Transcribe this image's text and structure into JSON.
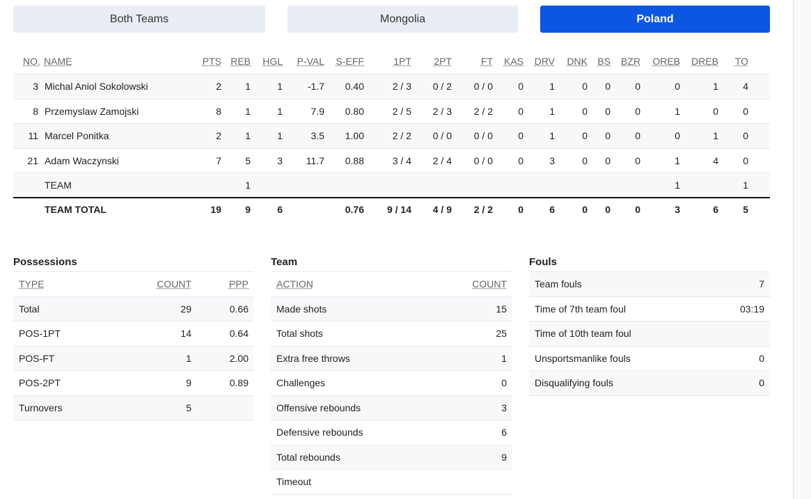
{
  "tabs": [
    "Both Teams",
    "Mongolia",
    "Poland"
  ],
  "box_score": {
    "headers": [
      "NO.",
      "NAME",
      "PTS",
      "REB",
      "HGL",
      "P-VAL",
      "S-EFF",
      "1PT",
      "2PT",
      "FT",
      "KAS",
      "DRV",
      "DNK",
      "BS",
      "BZR",
      "OREB",
      "DREB",
      "TO"
    ],
    "rows": [
      [
        "3",
        "Michal Aniol Sokolowski",
        "2",
        "1",
        "1",
        "-1.7",
        "0.40",
        "2 / 3",
        "0 / 2",
        "0 / 0",
        "0",
        "1",
        "0",
        "0",
        "0",
        "0",
        "1",
        "4"
      ],
      [
        "8",
        "Przemyslaw Zamojski",
        "8",
        "1",
        "1",
        "7.9",
        "0.80",
        "2 / 5",
        "2 / 3",
        "2 / 2",
        "0",
        "1",
        "0",
        "0",
        "0",
        "1",
        "0",
        "0"
      ],
      [
        "11",
        "Marcel Ponitka",
        "2",
        "1",
        "1",
        "3.5",
        "1.00",
        "2 / 2",
        "0 / 0",
        "0 / 0",
        "0",
        "1",
        "0",
        "0",
        "0",
        "0",
        "1",
        "0"
      ],
      [
        "21",
        "Adam Waczynski",
        "7",
        "5",
        "3",
        "11.7",
        "0.88",
        "3 / 4",
        "2 / 4",
        "0 / 0",
        "0",
        "3",
        "0",
        "0",
        "0",
        "1",
        "4",
        "0"
      ],
      [
        null,
        "TEAM",
        null,
        "1",
        null,
        null,
        null,
        null,
        null,
        null,
        null,
        null,
        null,
        null,
        null,
        "1",
        null,
        "1"
      ]
    ],
    "total": [
      null,
      "TEAM TOTAL",
      "19",
      "9",
      "6",
      null,
      "0.76",
      "9 / 14",
      "4 / 9",
      "2 / 2",
      "0",
      "6",
      "0",
      "0",
      "0",
      "3",
      "6",
      "5"
    ]
  },
  "possessions": {
    "title": "Possessions",
    "headers": [
      "TYPE",
      "COUNT",
      "PPP"
    ],
    "rows": [
      [
        "Total",
        "29",
        "0.66"
      ],
      [
        "POS-1PT",
        "14",
        "0.64"
      ],
      [
        "POS-FT",
        "1",
        "2.00"
      ],
      [
        "POS-2PT",
        "9",
        "0.89"
      ],
      [
        "Turnovers",
        "5",
        null
      ]
    ]
  },
  "team": {
    "title": "Team",
    "headers": [
      "ACTION",
      "COUNT"
    ],
    "rows": [
      [
        "Made shots",
        "15"
      ],
      [
        "Total shots",
        "25"
      ],
      [
        "Extra free throws",
        "1"
      ],
      [
        "Challenges",
        "0"
      ],
      [
        "Offensive rebounds",
        "3"
      ],
      [
        "Defensive rebounds",
        "6"
      ],
      [
        "Total rebounds",
        "9"
      ],
      [
        "Timeout",
        null
      ]
    ]
  },
  "fouls": {
    "title": "Fouls",
    "rows": [
      [
        "Team fouls",
        "7"
      ],
      [
        "Time of 7th team foul",
        "03:19"
      ],
      [
        "Time of 10th team foul",
        null
      ],
      [
        "Unsportsmanlike fouls",
        "0"
      ],
      [
        "Disqualifying fouls",
        "0"
      ]
    ]
  }
}
